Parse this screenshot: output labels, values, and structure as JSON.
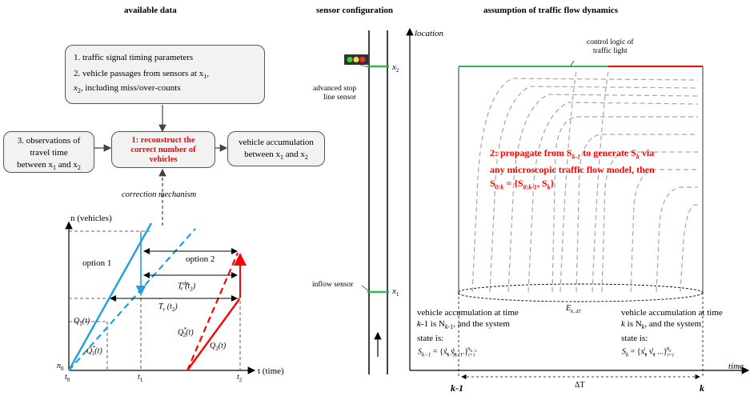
{
  "headers": {
    "left": "available data",
    "middle": "sensor configuration",
    "right": "assumption of traffic flow dynamics"
  },
  "boxes": {
    "b1_line1": "1. traffic signal timing parameters",
    "b1_line2": "2. vehicle passages from sensors at x",
    "b1_line2_sub": "1",
    "b1_line3_pre": "x",
    "b1_line3_sub": "2",
    "b1_line3_post": ", including miss/over-counts",
    "b3_line1": "3. observations of",
    "b3_line2": "travel time",
    "b3_line3_pre": "between x",
    "b3_line3_mid": " and x",
    "center_line1": "1: reconstruct the",
    "center_line2": "correct number of",
    "center_line3": "vehicles",
    "acc_line1": "vehicle accumulation",
    "acc_line2_pre": "between x",
    "acc_line2_mid": " and x",
    "sub1": "1",
    "sub2": "2"
  },
  "correction": "correction mechanism",
  "plot": {
    "yaxis": "n (vehicles)",
    "xaxis": "t (time)",
    "option1": "option 1",
    "option2": "option 2",
    "n0": "n",
    "n0_sub": "0",
    "t0": "t",
    "t0_sub": "0",
    "t1": "t",
    "t1_sub": "1",
    "t2": "t",
    "t2_sub": "2",
    "q1": "Q",
    "q1_sub": "1",
    "q1_arg": "(t)",
    "q1s_sub": "1",
    "q2s_sub": "2",
    "q2": "Q",
    "q2_sub": "2",
    "tobs_main": "T",
    "tobs_sub": "r",
    "tobs_sup": "obs",
    "tobs_arg": "(t",
    "tobs_arg_sub": "2",
    "that_main": "T",
    "that_sub": "r",
    "that_arg_sub": "2"
  },
  "sensor": {
    "x2": "x",
    "x2_sub": "2",
    "x1": "x",
    "x1_sub": "1",
    "stop_line_1": "advanced stop",
    "stop_line_2": "line sensor",
    "inflow": "inflow sensor"
  },
  "dynamics": {
    "location": "location",
    "time": "time",
    "control_1": "control logic of",
    "control_2": "traffic light",
    "red_1": "2: propagate from S",
    "red_1_sub": "k-1",
    "red_1b": " to generate S",
    "red_1b_sub": "k",
    "red_1c": " via",
    "red_2": "any microscopic traffic flow model, then",
    "red_3_pre": "S",
    "red_3_sub": "0:k",
    "red_3_mid": " = {S",
    "red_3_sub2": "0:k-1",
    "red_3_mid2": ", S",
    "red_3_sub3": "k",
    "red_3_post": "}",
    "ekdt": "E",
    "ekdt_sub": "k, ΔT",
    "left_acc_1": "vehicle accumulation at time",
    "left_acc_2_pre": "k",
    "left_acc_2_post": "-1 is N",
    "left_acc_2_sub": "k",
    "left_acc_2_sub_post": "-1",
    "left_acc_2_end": ", and the system",
    "left_acc_3": "state is:",
    "right_acc_1": "vehicle accumulation at time",
    "right_acc_2_pre": "k",
    "right_acc_2_mid": " is N",
    "right_acc_2_sub": "k",
    "right_acc_2_end": ", and the system",
    "right_acc_3": "state is:",
    "s_left": "S",
    "s_left_sub": "k−1",
    "s_left_eq": " = {x",
    "s_right": "S",
    "s_right_sub": "k",
    "s_right_eq": " = {x",
    "delta_t": "ΔT",
    "k_minus_1": "k-1",
    "k": "k"
  },
  "colors": {
    "cyan": "#1ba1e2",
    "red": "#ff0000",
    "green": "#2db84a",
    "gray_curve": "#a6a6a6"
  }
}
